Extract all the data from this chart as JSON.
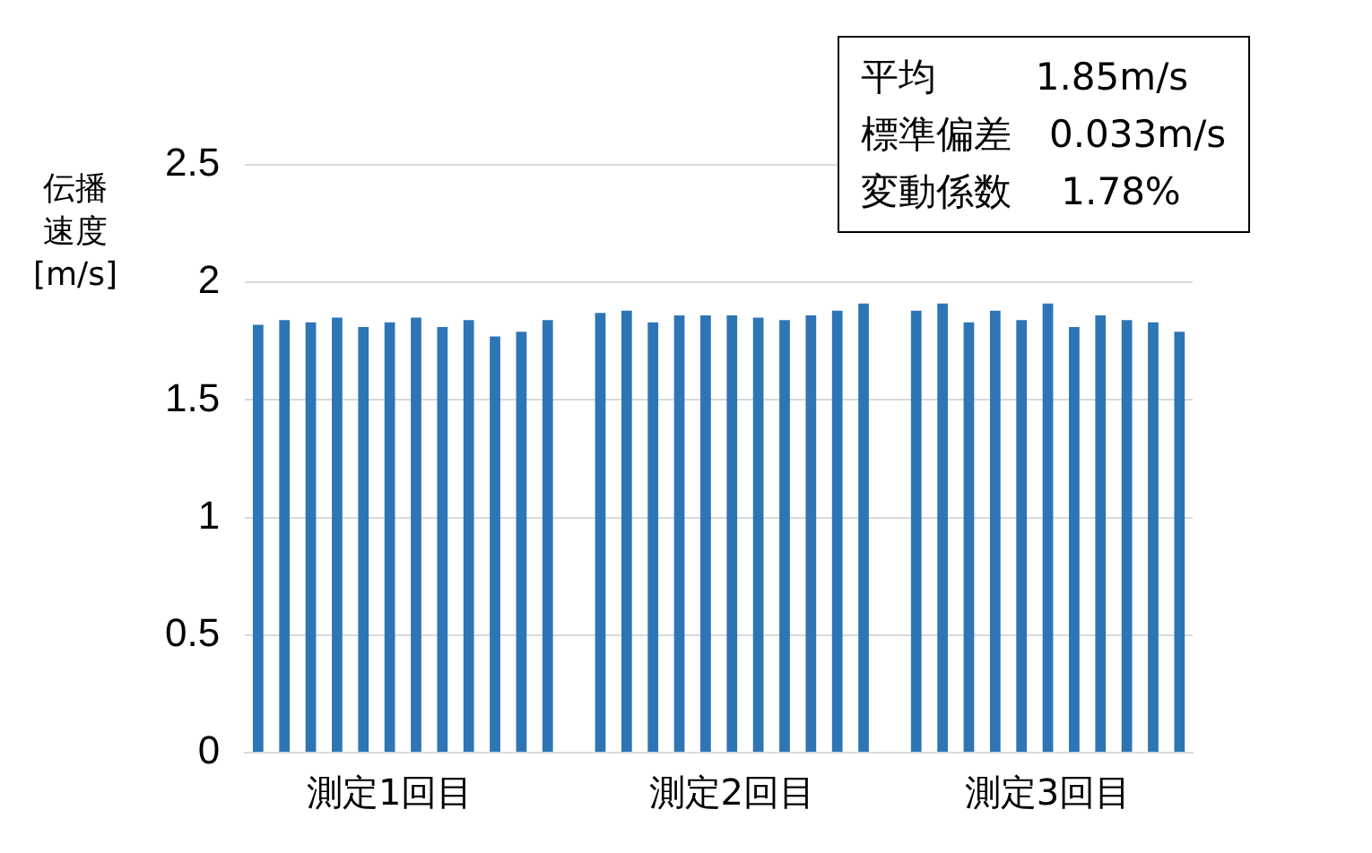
{
  "chart_data": {
    "type": "bar",
    "ylabel": "伝播速度[m/s]",
    "categories": [
      null,
      null,
      null,
      null,
      null,
      "測定1回目",
      null,
      null,
      null,
      null,
      null,
      null,
      null,
      null,
      null,
      null,
      null,
      null,
      "測定2回目",
      null,
      null,
      null,
      null,
      null,
      null,
      null,
      null,
      null,
      null,
      null,
      "測定3回目",
      null,
      null,
      null,
      null,
      null
    ],
    "values": [
      1.82,
      1.84,
      1.83,
      1.85,
      1.81,
      1.83,
      1.85,
      1.81,
      1.84,
      1.77,
      1.79,
      1.84,
      null,
      1.87,
      1.88,
      1.83,
      1.86,
      1.86,
      1.86,
      1.85,
      1.84,
      1.86,
      1.88,
      1.91,
      null,
      1.88,
      1.91,
      1.83,
      1.88,
      1.84,
      1.91,
      1.81,
      1.86,
      1.84,
      1.83,
      1.79
    ],
    "color": "#2e75b6",
    "ylim": [
      0,
      2.5
    ],
    "yticks": [
      0,
      0.5,
      1,
      1.5,
      2,
      2.5
    ],
    "grid": "y",
    "legend": false,
    "annotations": [
      "平均　　  1.85m/s",
      "標準偏差　0.033m/s",
      "変動係数　 1.78%"
    ]
  }
}
